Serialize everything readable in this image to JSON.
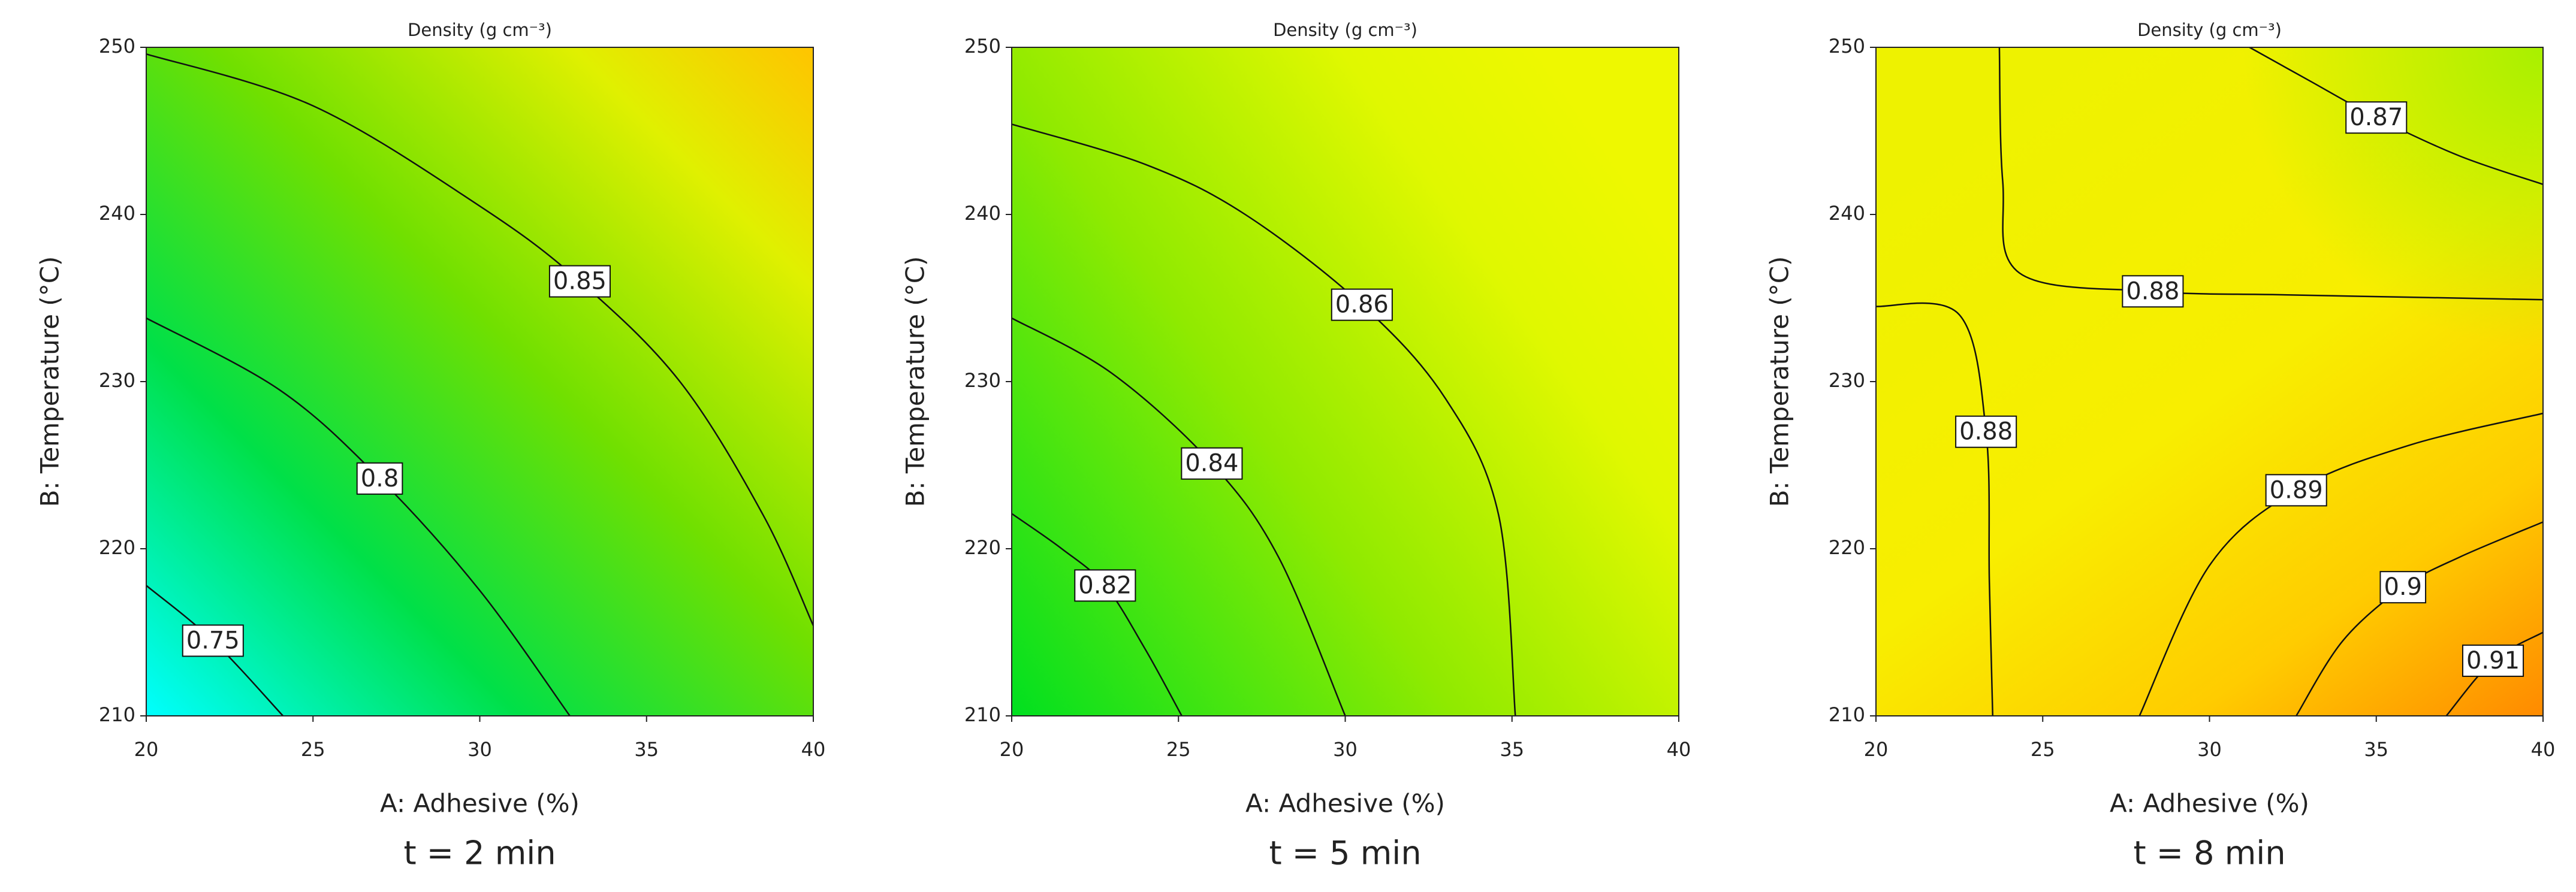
{
  "chart_data": [
    {
      "type": "contour",
      "title": "Density (g cm⁻³)",
      "caption": "t = 2 min",
      "x_label": "A: Adhesive (%)",
      "y_label": "B: Temperature (°C)",
      "xlim": [
        20,
        40
      ],
      "ylim": [
        210,
        250
      ],
      "xticks": [
        20,
        25,
        30,
        35,
        40
      ],
      "yticks": [
        210,
        220,
        230,
        240,
        250
      ],
      "contours": [
        {
          "level": 0.75,
          "x": [
            20,
            22,
            24.1
          ],
          "y": [
            217.8,
            214.5,
            210
          ]
        },
        {
          "level": 0.8,
          "x": [
            20,
            24,
            27,
            30,
            32.7
          ],
          "y": [
            233.8,
            229.5,
            224.2,
            217.5,
            210
          ]
        },
        {
          "level": 0.85,
          "x": [
            20,
            25,
            30,
            33,
            36,
            38.5,
            40
          ],
          "y": [
            249.6,
            246.5,
            240.5,
            236,
            230,
            222,
            215.4
          ]
        }
      ]
    },
    {
      "type": "contour",
      "title": "Density (g cm⁻³)",
      "caption": "t = 5 min",
      "x_label": "A: Adhesive (%)",
      "y_label": "B: Temperature (°C)",
      "xlim": [
        20,
        40
      ],
      "ylim": [
        210,
        250
      ],
      "xticks": [
        20,
        25,
        30,
        35,
        40
      ],
      "yticks": [
        210,
        220,
        230,
        240,
        250
      ],
      "contours": [
        {
          "level": 0.82,
          "x": [
            20,
            21.5,
            22.8,
            24,
            25.1
          ],
          "y": [
            222.1,
            220,
            217.8,
            214,
            210
          ]
        },
        {
          "level": 0.84,
          "x": [
            20,
            23,
            26,
            28,
            30
          ],
          "y": [
            233.8,
            230.5,
            225.1,
            219.5,
            210
          ]
        },
        {
          "level": 0.86,
          "x": [
            20,
            24,
            27,
            30.5,
            33,
            34.6,
            35.1
          ],
          "y": [
            245.4,
            243,
            240,
            234.6,
            229,
            222,
            210
          ]
        }
      ]
    },
    {
      "type": "contour",
      "title": "Density (g cm⁻³)",
      "caption": "t = 8 min",
      "x_label": "A: Adhesive (%)",
      "y_label": "B: Temperature (°C)",
      "xlim": [
        20,
        40
      ],
      "ylim": [
        210,
        250
      ],
      "xticks": [
        20,
        25,
        30,
        35,
        40
      ],
      "yticks": [
        210,
        220,
        230,
        240,
        250
      ],
      "contours": [
        {
          "level": 0.87,
          "x": [
            31.2,
            33,
            35,
            37.5,
            40
          ],
          "y": [
            250,
            248,
            245.8,
            243.5,
            241.8
          ]
        },
        {
          "level": 0.88,
          "x": [
            23.7,
            23.8,
            24.3,
            28.3,
            32,
            36,
            40
          ],
          "y": [
            250,
            242,
            236.5,
            235.4,
            235.2,
            235.05,
            234.9
          ]
        },
        {
          "level": 0.88,
          "x": [
            20,
            22.5,
            23.3,
            23.4,
            23.5
          ],
          "y": [
            234.5,
            234,
            227,
            218,
            210
          ]
        },
        {
          "level": 0.89,
          "x": [
            40,
            36,
            32.6,
            30,
            27.9
          ],
          "y": [
            228.1,
            226.2,
            223.5,
            219,
            210
          ]
        },
        {
          "level": 0.9,
          "x": [
            40,
            37.5,
            35.8,
            34,
            32.6
          ],
          "y": [
            221.6,
            219.5,
            217.7,
            214.5,
            210
          ]
        },
        {
          "level": 0.91,
          "x": [
            40,
            38.5,
            37.1
          ],
          "y": [
            215,
            213.3,
            210
          ]
        }
      ]
    }
  ]
}
